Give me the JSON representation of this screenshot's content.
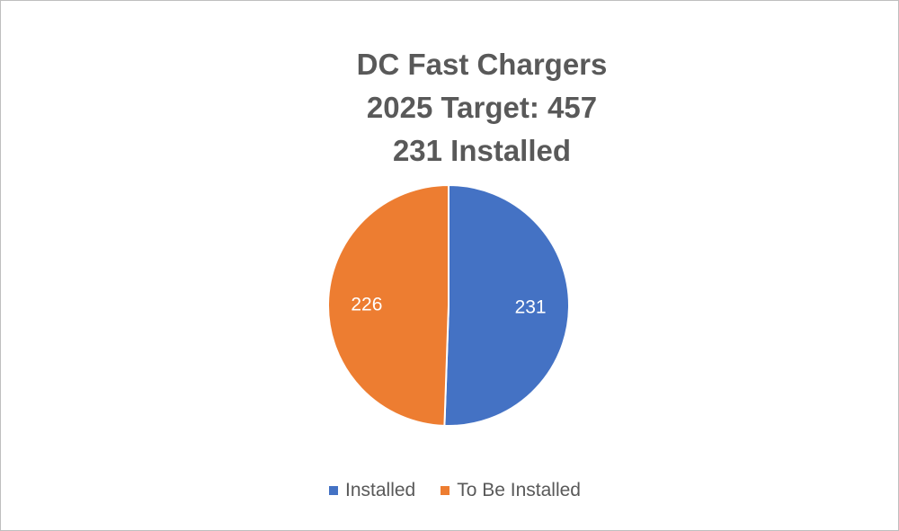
{
  "chart_data": {
    "type": "pie",
    "title_lines": [
      "DC Fast Chargers",
      "2025 Target: 457",
      "231 Installed"
    ],
    "slices": [
      {
        "label": "Installed",
        "value": 231,
        "color": "#4472C4"
      },
      {
        "label": "To Be Installed",
        "value": 226,
        "color": "#ED7D31"
      }
    ],
    "data_label_color": "#ffffff",
    "legend_position": "bottom"
  }
}
